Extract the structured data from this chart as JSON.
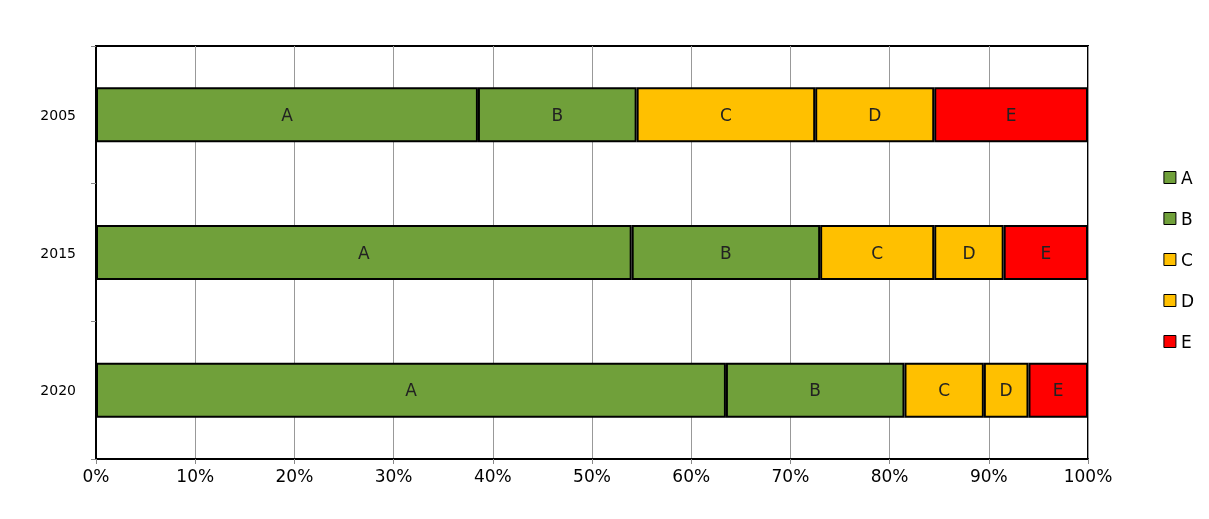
{
  "chart_data": {
    "type": "bar",
    "orientation": "horizontal",
    "stacked": true,
    "categories": [
      "2005",
      "2015",
      "2020"
    ],
    "series": [
      {
        "name": "A",
        "color": "#70a03a",
        "values": [
          38.5,
          54,
          63.5
        ]
      },
      {
        "name": "B",
        "color": "#70a03a",
        "values": [
          16,
          19,
          18
        ]
      },
      {
        "name": "C",
        "color": "#ffc000",
        "values": [
          18,
          11.5,
          8
        ]
      },
      {
        "name": "D",
        "color": "#ffc000",
        "values": [
          12,
          7,
          4.5
        ]
      },
      {
        "name": "E",
        "color": "#ff0000",
        "values": [
          15.5,
          8.5,
          6
        ]
      }
    ],
    "xlim": [
      0,
      100
    ],
    "xticks": [
      {
        "value": 0,
        "label": "0%"
      },
      {
        "value": 10,
        "label": "10%"
      },
      {
        "value": 20,
        "label": "20%"
      },
      {
        "value": 30,
        "label": "30%"
      },
      {
        "value": 40,
        "label": "40%"
      },
      {
        "value": 50,
        "label": "50%"
      },
      {
        "value": 60,
        "label": "60%"
      },
      {
        "value": 70,
        "label": "70%"
      },
      {
        "value": 80,
        "label": "80%"
      },
      {
        "value": 90,
        "label": "90%"
      },
      {
        "value": 100,
        "label": "100%"
      }
    ],
    "grid": "x",
    "legend": "right"
  }
}
